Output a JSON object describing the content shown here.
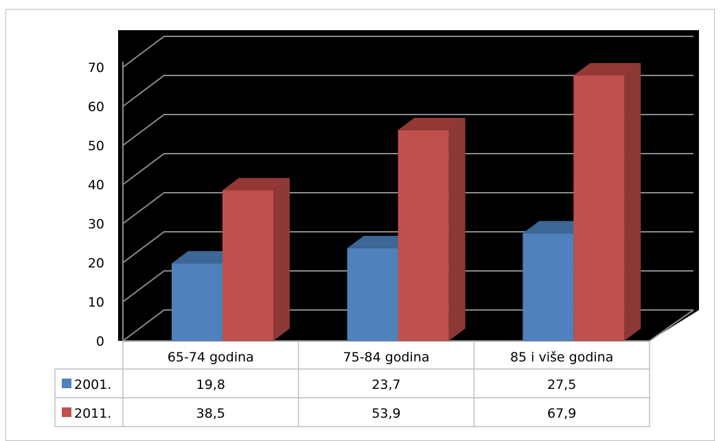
{
  "chart_data": {
    "type": "bar",
    "categories": [
      "65-74 godina",
      "75-84 godina",
      "85 i više godina"
    ],
    "series": [
      {
        "name": "2001.",
        "values": [
          19.8,
          23.7,
          27.5
        ],
        "display": [
          "19,8",
          "23,7",
          "27,5"
        ]
      },
      {
        "name": "2011.",
        "values": [
          38.5,
          53.9,
          67.9
        ],
        "display": [
          "38,5",
          "53,9",
          "67,9"
        ]
      }
    ],
    "ylim": [
      0,
      70
    ],
    "yticks": [
      "0",
      "10",
      "20",
      "30",
      "40",
      "50",
      "60",
      "70"
    ],
    "grid": true,
    "legend": "data-table-left",
    "colors": {
      "series_2001": "#4f81bd",
      "series_2001_top": "#3c6796",
      "series_2001_side": "#385d8a",
      "series_2011": "#c0504d",
      "series_2011_top": "#943835",
      "series_2011_side": "#8c3836",
      "plot_background": "#000000",
      "gridline": "#8c8c8c"
    }
  }
}
